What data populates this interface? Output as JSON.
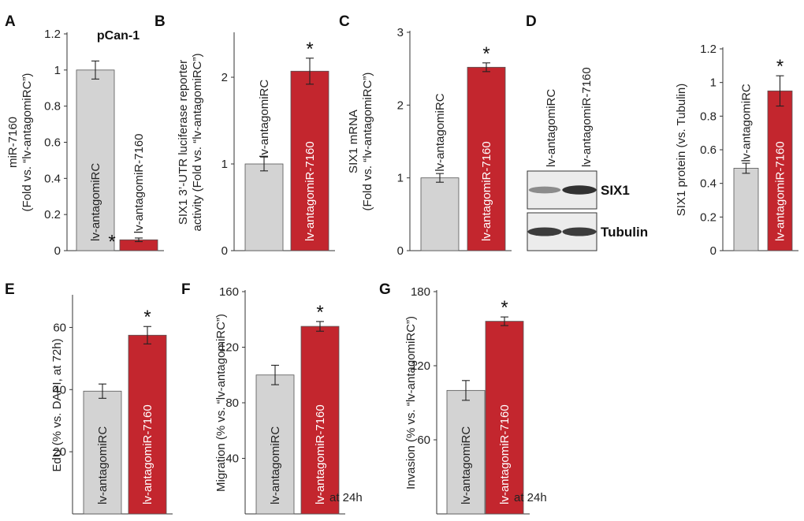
{
  "colors": {
    "control": "#d3d3d3",
    "treated": "#c3262e",
    "axis": "#333333"
  },
  "chart_data": [
    {
      "id": "A",
      "panel_label": "A",
      "type": "bar",
      "title": "pCan-1",
      "ylabel": [
        "miR-7160",
        "(Fold vs. “lv-antagomiRC”)"
      ],
      "ylim": [
        0,
        1.2
      ],
      "yticks": [
        "0",
        "0.2",
        "0.4",
        "0.6",
        "0.8",
        "1",
        "1.2"
      ],
      "categories": [
        "lv-antagomiRC",
        "lv-antagomiR-7160"
      ],
      "values": [
        1.0,
        0.06
      ],
      "errors": [
        0.05,
        0.01
      ],
      "significance": [
        "",
        "*"
      ],
      "note": ""
    },
    {
      "id": "B",
      "panel_label": "B",
      "type": "bar",
      "title": "",
      "ylabel": [
        "SIX1 3’-UTR luciferase reporter",
        "activity (Fold vs. “lv-antagomiRC”)"
      ],
      "ylim": [
        0,
        2.5
      ],
      "yticks": [
        "0",
        "1",
        "2"
      ],
      "categories": [
        "lv-antagomiRC",
        "lv-antagomiR-7160"
      ],
      "values": [
        1.0,
        2.07
      ],
      "errors": [
        0.08,
        0.15
      ],
      "significance": [
        "",
        "*"
      ],
      "note": ""
    },
    {
      "id": "C",
      "panel_label": "C",
      "type": "bar",
      "title": "",
      "ylabel": [
        "SIX1 mRNA",
        "(Fold vs. “lv-antagomiRC”)"
      ],
      "ylim": [
        0,
        3
      ],
      "yticks": [
        "0",
        "1",
        "2",
        "3"
      ],
      "categories": [
        "lv-antagomiRC",
        "lv-antagomiR-7160"
      ],
      "values": [
        1.0,
        2.52
      ],
      "errors": [
        0.06,
        0.06
      ],
      "significance": [
        "",
        "*"
      ],
      "note": ""
    },
    {
      "id": "D",
      "panel_label": "",
      "type": "bar",
      "title": "",
      "ylabel": [
        "SIX1 protein (vs. Tubulin)"
      ],
      "ylim": [
        0,
        1.2
      ],
      "yticks": [
        "0",
        "0.2",
        "0.4",
        "0.6",
        "0.8",
        "1",
        "1.2"
      ],
      "categories": [
        "lv-antagomiRC",
        "lv-antagomiR-7160"
      ],
      "values": [
        0.49,
        0.95
      ],
      "errors": [
        0.03,
        0.09
      ],
      "significance": [
        "",
        "*"
      ],
      "note": ""
    },
    {
      "id": "E",
      "panel_label": "E",
      "type": "bar",
      "title": "",
      "ylabel": [
        "EdU (% vs. DAPI, at 72h)"
      ],
      "ylim": [
        0,
        70
      ],
      "yticks": [
        "20",
        "40",
        "60"
      ],
      "categories": [
        "lv-antagomiRC",
        "lv-antagomiR-7160"
      ],
      "values": [
        39.5,
        57.5
      ],
      "errors": [
        2.3,
        2.8
      ],
      "significance": [
        "",
        "*"
      ],
      "note": ""
    },
    {
      "id": "F",
      "panel_label": "F",
      "type": "bar",
      "title": "",
      "ylabel": [
        "Migration (% vs. “lv-antagomiRC”)"
      ],
      "ylim": [
        0,
        160
      ],
      "yticks": [
        "40",
        "80",
        "120",
        "160"
      ],
      "categories": [
        "lv-antagomiRC",
        "lv-antagomiR-7160"
      ],
      "values": [
        100,
        135
      ],
      "errors": [
        7,
        3.5
      ],
      "significance": [
        "",
        "*"
      ],
      "note": "at 24h"
    },
    {
      "id": "G",
      "panel_label": "G",
      "type": "bar",
      "title": "",
      "ylabel": [
        "Invasion (% vs. “lv-antagomiRC”)"
      ],
      "ylim": [
        0,
        180
      ],
      "yticks": [
        "60",
        "120",
        "180"
      ],
      "categories": [
        "lv-antagomiRC",
        "lv-antagomiR-7160"
      ],
      "values": [
        100,
        156
      ],
      "errors": [
        8,
        3.5
      ],
      "significance": [
        "",
        "*"
      ],
      "note": "at 24h"
    }
  ],
  "blot": {
    "panel_label": "D",
    "lanes": [
      "lv-antagomiRC",
      "lv-antagomiR-7160"
    ],
    "bands": [
      {
        "label": "SIX1",
        "intensity": [
          0.45,
          0.9
        ]
      },
      {
        "label": "Tubulin",
        "intensity": [
          0.85,
          0.85
        ]
      }
    ]
  }
}
